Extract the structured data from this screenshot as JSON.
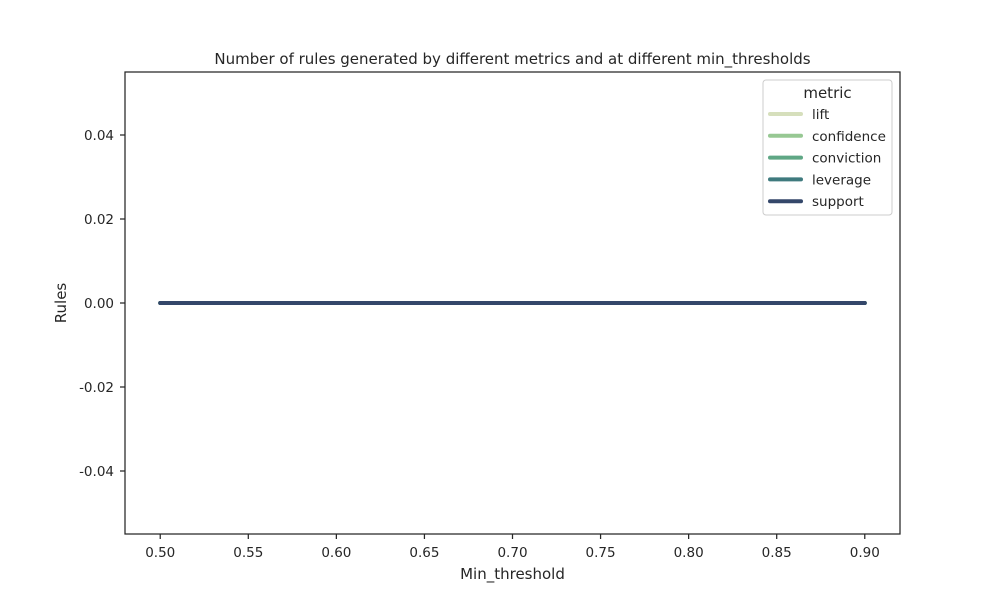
{
  "chart_data": {
    "type": "line",
    "title": "Number of rules generated by different metrics and at different min_thresholds",
    "xlabel": "Min_threshold",
    "ylabel": "Rules",
    "xlim": [
      0.48,
      0.92
    ],
    "ylim": [
      -0.055,
      0.055
    ],
    "xticks": [
      "0.50",
      "0.55",
      "0.60",
      "0.65",
      "0.70",
      "0.75",
      "0.80",
      "0.85",
      "0.90"
    ],
    "yticks": [
      "0.04",
      "0.02",
      "0.00",
      "-0.02",
      "-0.04"
    ],
    "x": [
      0.5,
      0.6,
      0.7,
      0.8,
      0.9
    ],
    "legend_title": "metric",
    "legend_position": "top-right",
    "grid": false,
    "series": [
      {
        "name": "lift",
        "color": "#d6dfbc",
        "values": [
          0,
          0,
          0,
          0,
          0
        ]
      },
      {
        "name": "confidence",
        "color": "#97c893",
        "values": [
          0,
          0,
          0,
          0,
          0
        ]
      },
      {
        "name": "conviction",
        "color": "#5fa785",
        "values": [
          0,
          0,
          0,
          0,
          0
        ]
      },
      {
        "name": "leverage",
        "color": "#3f7a7e",
        "values": [
          0,
          0,
          0,
          0,
          0
        ]
      },
      {
        "name": "support",
        "color": "#34476a",
        "values": [
          0,
          0,
          0,
          0,
          0
        ]
      }
    ]
  }
}
